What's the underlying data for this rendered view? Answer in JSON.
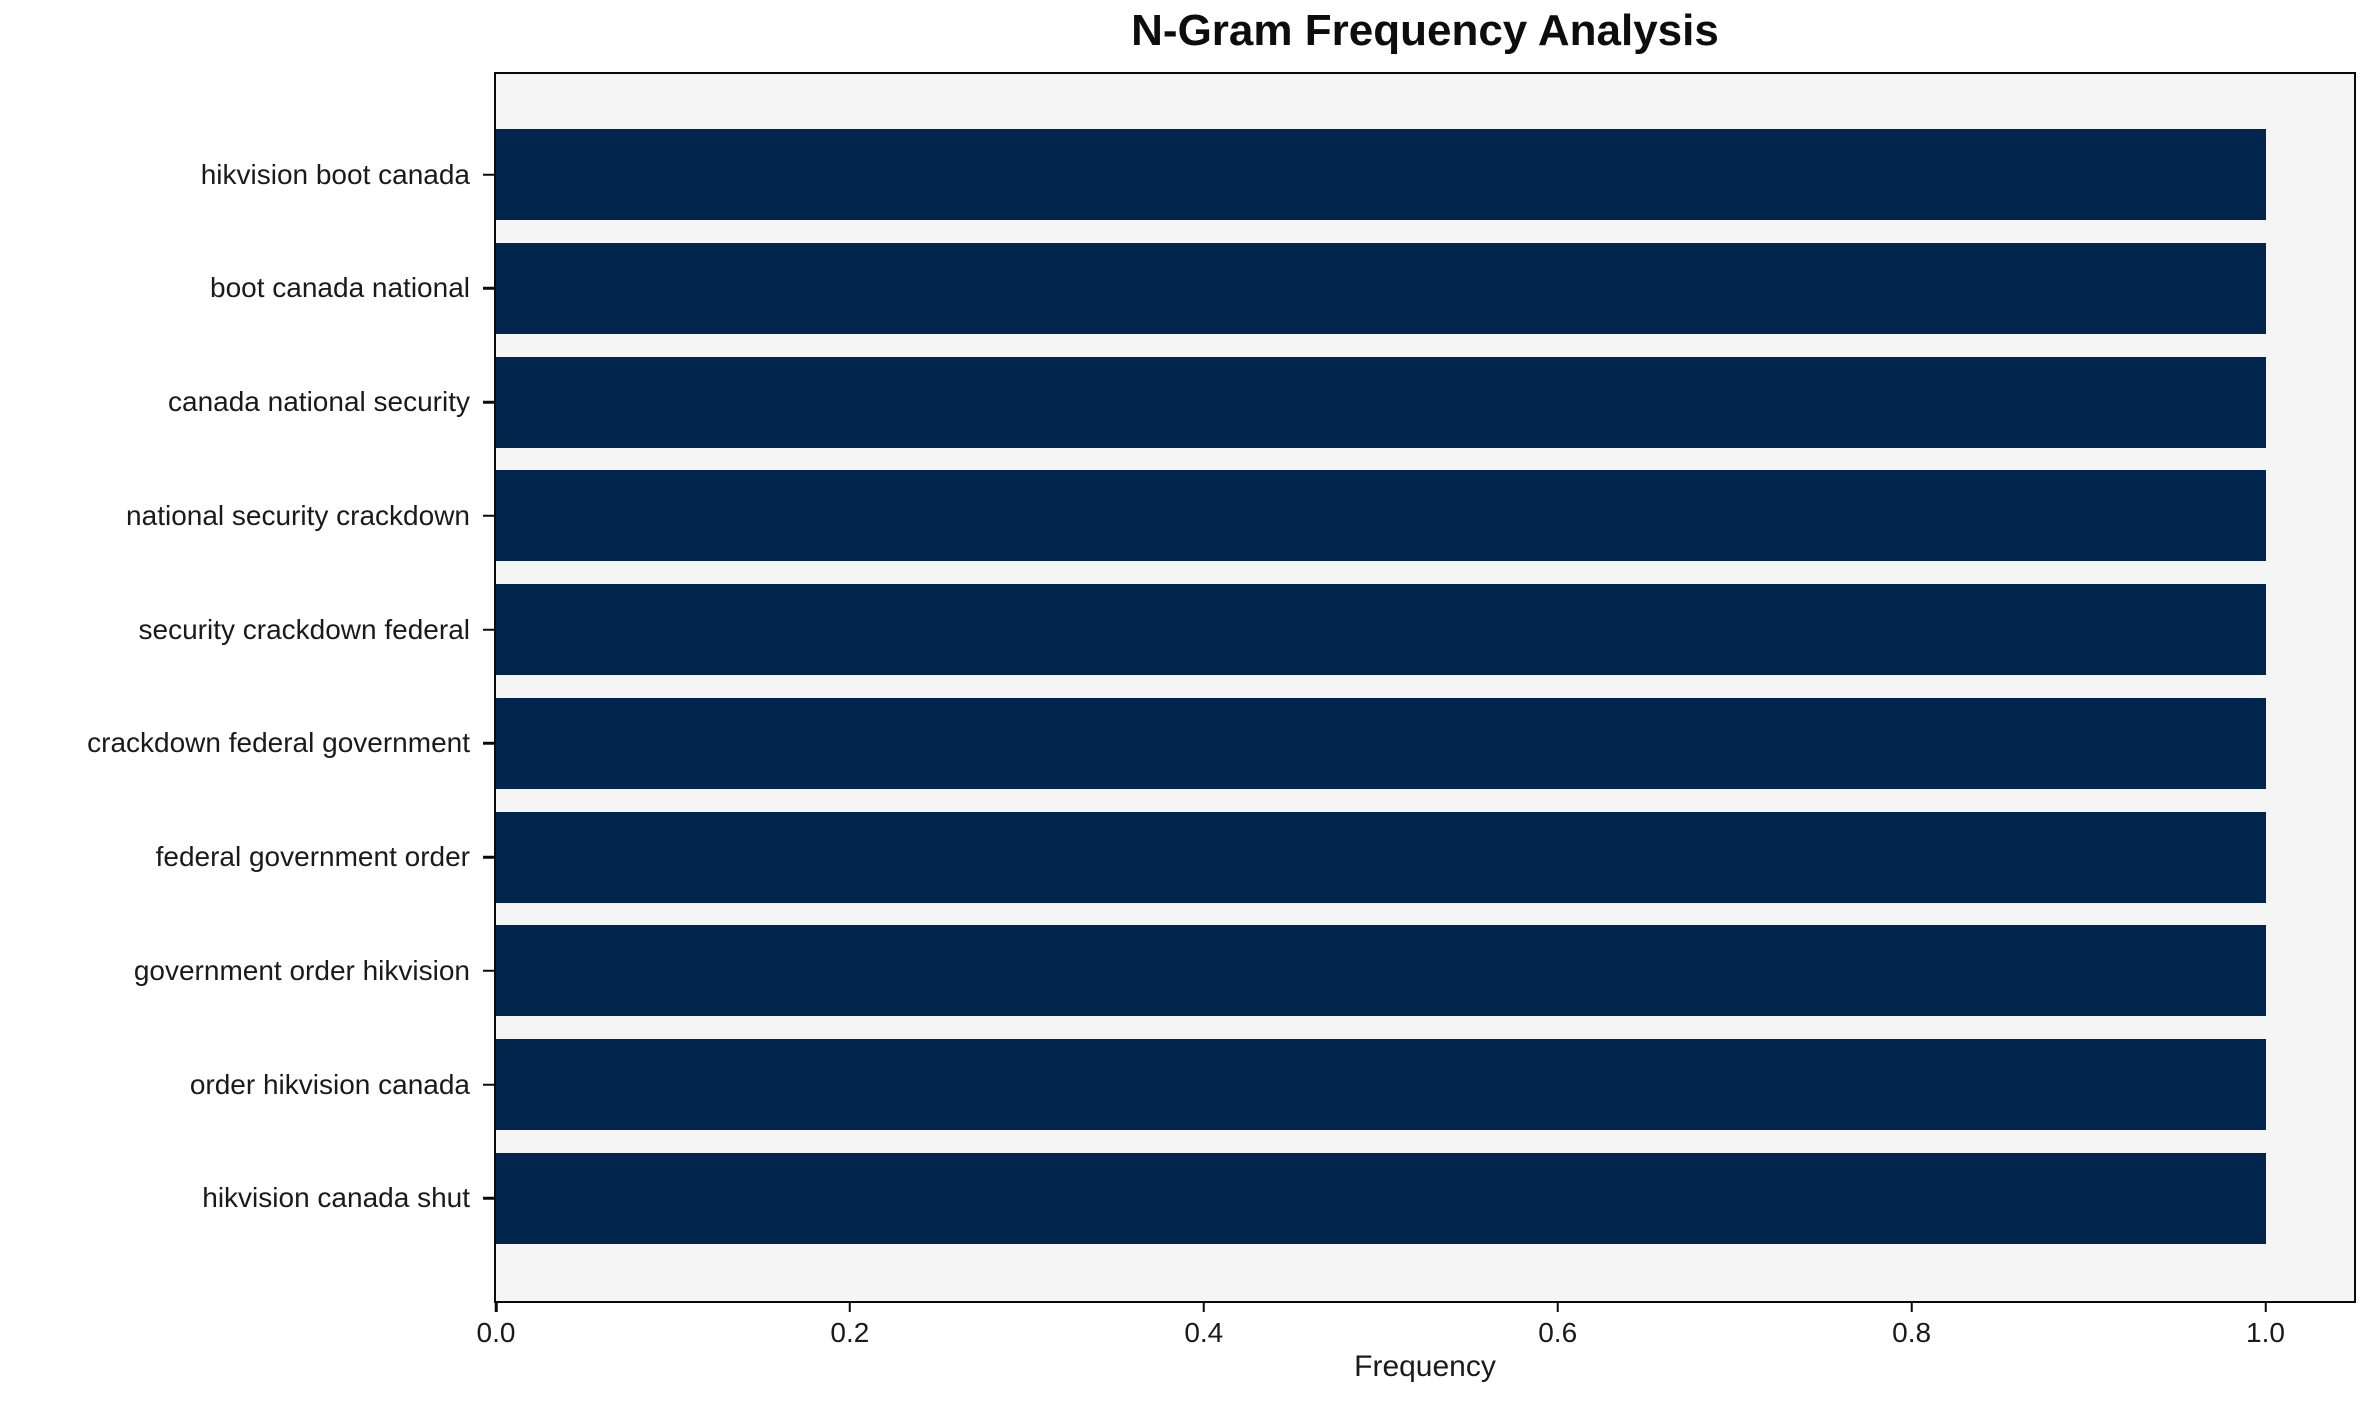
{
  "chart_data": {
    "type": "bar",
    "orientation": "horizontal",
    "title": "N-Gram Frequency Analysis",
    "xlabel": "Frequency",
    "ylabel": "",
    "categories": [
      "hikvision boot canada",
      "boot canada national",
      "canada national security",
      "national security crackdown",
      "security crackdown federal",
      "crackdown federal government",
      "federal government order",
      "government order hikvision",
      "order hikvision canada",
      "hikvision canada shut"
    ],
    "values": [
      1.0,
      1.0,
      1.0,
      1.0,
      1.0,
      1.0,
      1.0,
      1.0,
      1.0,
      1.0
    ],
    "x_ticks": [
      0.0,
      0.2,
      0.4,
      0.6,
      0.8,
      1.0
    ],
    "x_tick_labels": [
      "0.0",
      "0.2",
      "0.4",
      "0.6",
      "0.8",
      "1.0"
    ],
    "xlim": [
      0,
      1.05
    ],
    "grid": false,
    "legend": null,
    "colors": {
      "bar": "#02254d",
      "plot_background": "#f5f5f6",
      "figure_background": "#ffffff",
      "spine": "#0a0a0a",
      "text": "#1a1a1a"
    }
  }
}
